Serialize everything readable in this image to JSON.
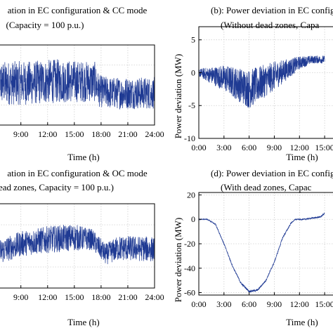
{
  "chart_data": [
    {
      "id": "a",
      "type": "line",
      "title_lines": [
        "ation in EC configuration & CC mode",
        "(Capacity = 100 p.u.)"
      ],
      "xlabel": "Time (h)",
      "ylabel": "",
      "x_ticks": [
        "9:00",
        "12:00",
        "15:00",
        "18:00",
        "21:00",
        "24:00"
      ],
      "y_ticks": [],
      "xlim_hours": [
        6.5,
        24
      ],
      "ylim": [
        -10,
        10
      ],
      "series": [
        {
          "x_hours": [
            6.5,
            10,
            13,
            17.3,
            17.8,
            19,
            22,
            24
          ],
          "y_center": [
            0.5,
            0.5,
            1.0,
            0.8,
            -1.5,
            -2.0,
            -2.0,
            -2.0
          ],
          "y_amplitude": [
            5.5,
            5.5,
            5.5,
            5.0,
            4.0,
            4.0,
            4.0,
            4.0
          ]
        }
      ],
      "color": "#1f3a93",
      "grid": true
    },
    {
      "id": "b",
      "type": "line",
      "title_lines": [
        "(b): Power deviation in EC configura",
        "(Without dead zones, Capa"
      ],
      "xlabel": "Time (h)",
      "ylabel": "Power deviation (MW)",
      "x_ticks": [
        "0:00",
        "3:00",
        "6:00",
        "9:00",
        "12:00",
        "15:00"
      ],
      "y_ticks": [
        "5",
        "0",
        "-5",
        "-10"
      ],
      "xlim_hours": [
        0,
        16.5
      ],
      "ylim": [
        -10,
        7
      ],
      "series": [
        {
          "x_hours": [
            0,
            3,
            6,
            9,
            12,
            13.5,
            15
          ],
          "y_center": [
            0,
            -0.8,
            -2.5,
            -0.5,
            1.5,
            2.0,
            2.0
          ],
          "y_amplitude": [
            0.6,
            2.0,
            3.0,
            2.2,
            1.0,
            0.6,
            0.6
          ]
        }
      ],
      "color": "#1f3a93",
      "grid": true
    },
    {
      "id": "c",
      "type": "line",
      "title_lines": [
        "ation in EC configuration & OC mode",
        "ead zones, Capacity = 100 p.u.)"
      ],
      "xlabel": "Time (h)",
      "ylabel": "",
      "x_ticks": [
        "9:00",
        "12:00",
        "15:00",
        "18:00",
        "21:00",
        "24:00"
      ],
      "y_ticks": [],
      "xlim_hours": [
        6.5,
        24
      ],
      "ylim": [
        -10,
        10
      ],
      "series": [
        {
          "x_hours": [
            6.5,
            9,
            12,
            15,
            17,
            18.5,
            20,
            24
          ],
          "y_center": [
            -1.5,
            0.5,
            1.5,
            2.0,
            1.5,
            -2.0,
            -0.5,
            -0.8
          ],
          "y_amplitude": [
            3.0,
            3.0,
            3.2,
            3.2,
            2.5,
            2.5,
            3.0,
            3.0
          ]
        }
      ],
      "color": "#1f3a93",
      "grid": true
    },
    {
      "id": "d",
      "type": "line",
      "title_lines": [
        "(d): Power deviation in EC config",
        "(With dead zones, Capac"
      ],
      "xlabel": "Time (h)",
      "ylabel": "Power deviation (MW)",
      "x_ticks": [
        "0:00",
        "3:00",
        "6:00",
        "9:00",
        "12:00",
        "15:00"
      ],
      "y_ticks": [
        "20",
        "0",
        "-20",
        "-40",
        "-60"
      ],
      "xlim_hours": [
        0,
        16.5
      ],
      "ylim": [
        -62,
        22
      ],
      "series": [
        {
          "x_hours": [
            0,
            1.0,
            2.0,
            3.0,
            4.0,
            5.0,
            6.0,
            7.0,
            8.0,
            9.0,
            10.0,
            11.0,
            11.5,
            12.5,
            14.5,
            15
          ],
          "y_center": [
            0,
            0,
            -4,
            -20,
            -38,
            -52,
            -59,
            -58,
            -50,
            -35,
            -15,
            -3,
            0,
            0,
            2,
            5
          ],
          "y_amplitude": [
            0.3,
            0.3,
            0.6,
            0.8,
            0.8,
            0.8,
            0.8,
            0.8,
            0.8,
            0.8,
            0.8,
            0.6,
            0.4,
            0.5,
            0.6,
            0.8
          ]
        }
      ],
      "color": "#1f3a93",
      "grid": true
    }
  ]
}
